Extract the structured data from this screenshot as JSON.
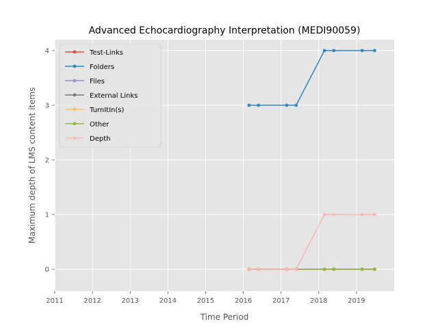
{
  "chart_data": {
    "type": "line",
    "title": "Advanced Echocardiography Interpretation (MEDI90059)",
    "xlabel": "Time Period",
    "ylabel": "Maximum depth of LMS content items",
    "xlim": [
      2011,
      2020
    ],
    "ylim": [
      -0.4,
      4.2
    ],
    "xticks": [
      2011,
      2012,
      2013,
      2014,
      2015,
      2016,
      2017,
      2018,
      2019
    ],
    "yticks": [
      0,
      1,
      2,
      3,
      4
    ],
    "grid": true,
    "legend_position": "upper-left",
    "x": [
      2016.15,
      2016.4,
      2017.15,
      2017.4,
      2018.15,
      2018.4,
      2019.15,
      2019.48
    ],
    "series": [
      {
        "name": "Test-Links",
        "color": "#E24A33",
        "values": [
          0,
          0,
          0,
          0,
          0,
          0,
          0,
          0
        ]
      },
      {
        "name": "Folders",
        "color": "#348ABD",
        "values": [
          3,
          3,
          3,
          3,
          4,
          4,
          4,
          4
        ]
      },
      {
        "name": "Files",
        "color": "#988ED5",
        "values": [
          0,
          0,
          0,
          0,
          0,
          0,
          0,
          0
        ]
      },
      {
        "name": "External Links",
        "color": "#777777",
        "values": [
          0,
          0,
          0,
          0,
          0,
          0,
          0,
          0
        ]
      },
      {
        "name": "TurnItIn(s)",
        "color": "#FBC15E",
        "values": [
          0,
          0,
          0,
          0,
          0,
          0,
          0,
          0
        ]
      },
      {
        "name": "Other",
        "color": "#8EBA42",
        "values": [
          0,
          0,
          0,
          0,
          0,
          0,
          0,
          0
        ]
      },
      {
        "name": "Depth",
        "color": "#FFB5B8",
        "values": [
          0,
          0,
          0,
          0,
          1,
          1,
          1,
          1
        ]
      }
    ]
  }
}
